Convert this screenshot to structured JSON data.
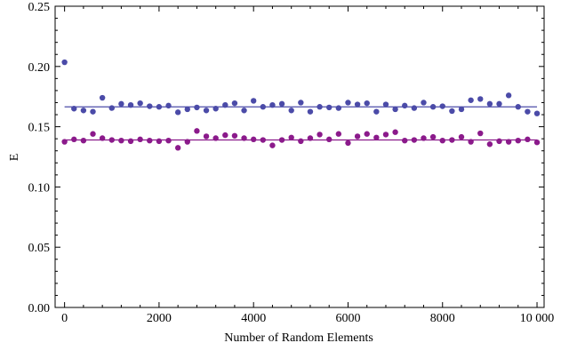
{
  "chart_data": {
    "type": "scatter",
    "title": "",
    "xlabel": "Number of Random Elements",
    "ylabel": "E",
    "xlim": [
      -200,
      10150
    ],
    "ylim": [
      0,
      0.25
    ],
    "x_ticks": [
      0,
      2000,
      4000,
      6000,
      8000,
      10000
    ],
    "x_tick_labels": [
      "0",
      "2000",
      "4000",
      "6000",
      "8000",
      "10 000"
    ],
    "y_ticks": [
      0.0,
      0.05,
      0.1,
      0.15,
      0.2,
      0.25
    ],
    "y_tick_labels": [
      "0.00",
      "0.05",
      "0.10",
      "0.15",
      "0.20",
      "0.25"
    ],
    "grid": false,
    "legend": "none",
    "series": [
      {
        "color": "#4b4ba8",
        "fit_value": 0.1665,
        "points": [
          [
            0,
            0.2035
          ],
          [
            200,
            0.165
          ],
          [
            400,
            0.1635
          ],
          [
            600,
            0.1625
          ],
          [
            800,
            0.174
          ],
          [
            1000,
            0.1655
          ],
          [
            1200,
            0.169
          ],
          [
            1400,
            0.168
          ],
          [
            1600,
            0.1695
          ],
          [
            1800,
            0.167
          ],
          [
            2000,
            0.1665
          ],
          [
            2200,
            0.1675
          ],
          [
            2400,
            0.162
          ],
          [
            2600,
            0.1645
          ],
          [
            2800,
            0.166
          ],
          [
            3000,
            0.1635
          ],
          [
            3200,
            0.165
          ],
          [
            3400,
            0.168
          ],
          [
            3600,
            0.1695
          ],
          [
            3800,
            0.1635
          ],
          [
            4000,
            0.1715
          ],
          [
            4200,
            0.1665
          ],
          [
            4400,
            0.168
          ],
          [
            4600,
            0.169
          ],
          [
            4800,
            0.1635
          ],
          [
            5000,
            0.17
          ],
          [
            5200,
            0.1625
          ],
          [
            5400,
            0.1665
          ],
          [
            5600,
            0.166
          ],
          [
            5800,
            0.1655
          ],
          [
            6000,
            0.17
          ],
          [
            6200,
            0.1685
          ],
          [
            6400,
            0.1695
          ],
          [
            6600,
            0.1625
          ],
          [
            6800,
            0.1685
          ],
          [
            7000,
            0.1645
          ],
          [
            7200,
            0.1675
          ],
          [
            7400,
            0.1655
          ],
          [
            7600,
            0.17
          ],
          [
            7800,
            0.1665
          ],
          [
            8000,
            0.167
          ],
          [
            8200,
            0.163
          ],
          [
            8400,
            0.1645
          ],
          [
            8600,
            0.172
          ],
          [
            8800,
            0.173
          ],
          [
            9000,
            0.169
          ],
          [
            9200,
            0.169
          ],
          [
            9400,
            0.176
          ],
          [
            9600,
            0.1665
          ],
          [
            9800,
            0.1625
          ],
          [
            10000,
            0.161
          ]
        ]
      },
      {
        "color": "#8b1a8b",
        "fit_value": 0.139,
        "points": [
          [
            0,
            0.1375
          ],
          [
            200,
            0.1395
          ],
          [
            400,
            0.1385
          ],
          [
            600,
            0.144
          ],
          [
            800,
            0.1405
          ],
          [
            1000,
            0.139
          ],
          [
            1200,
            0.1385
          ],
          [
            1400,
            0.138
          ],
          [
            1600,
            0.1395
          ],
          [
            1800,
            0.1385
          ],
          [
            2000,
            0.138
          ],
          [
            2200,
            0.1385
          ],
          [
            2400,
            0.1325
          ],
          [
            2600,
            0.1375
          ],
          [
            2800,
            0.1465
          ],
          [
            3000,
            0.142
          ],
          [
            3200,
            0.1405
          ],
          [
            3400,
            0.143
          ],
          [
            3600,
            0.1425
          ],
          [
            3800,
            0.1405
          ],
          [
            4000,
            0.1395
          ],
          [
            4200,
            0.139
          ],
          [
            4400,
            0.1345
          ],
          [
            4600,
            0.139
          ],
          [
            4800,
            0.141
          ],
          [
            5000,
            0.138
          ],
          [
            5200,
            0.1405
          ],
          [
            5400,
            0.1435
          ],
          [
            5600,
            0.1395
          ],
          [
            5800,
            0.144
          ],
          [
            6000,
            0.1365
          ],
          [
            6200,
            0.142
          ],
          [
            6400,
            0.144
          ],
          [
            6600,
            0.141
          ],
          [
            6800,
            0.1435
          ],
          [
            7000,
            0.1455
          ],
          [
            7200,
            0.1385
          ],
          [
            7400,
            0.139
          ],
          [
            7600,
            0.1405
          ],
          [
            7800,
            0.1415
          ],
          [
            8000,
            0.1385
          ],
          [
            8200,
            0.139
          ],
          [
            8400,
            0.1415
          ],
          [
            8600,
            0.1375
          ],
          [
            8800,
            0.1445
          ],
          [
            9000,
            0.1355
          ],
          [
            9200,
            0.138
          ],
          [
            9400,
            0.1375
          ],
          [
            9600,
            0.1385
          ],
          [
            9800,
            0.1395
          ],
          [
            10000,
            0.137
          ]
        ]
      }
    ]
  }
}
